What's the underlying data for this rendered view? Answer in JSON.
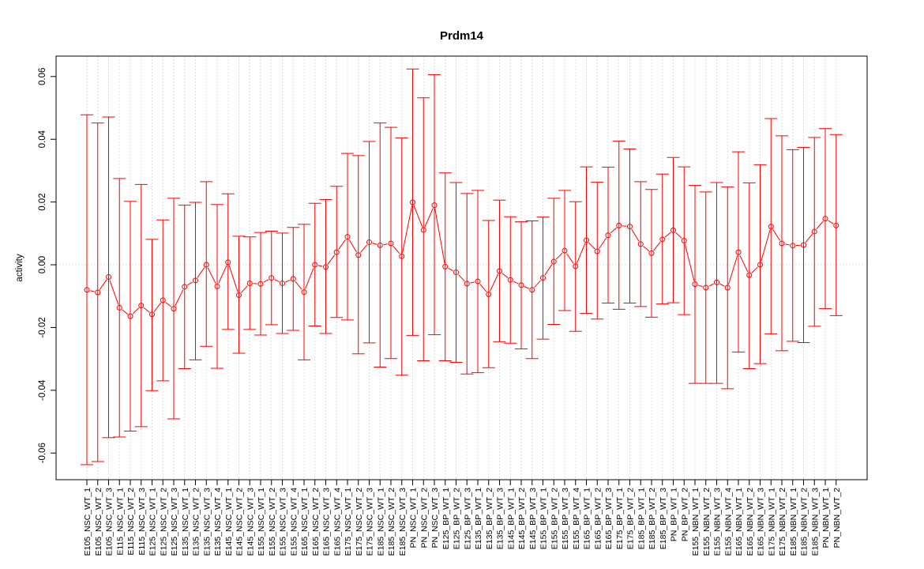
{
  "chart_data": {
    "type": "line",
    "title": "Prdm14",
    "xlabel": "",
    "ylabel": "activity",
    "ylim": [
      -0.0685,
      0.0665
    ],
    "yticks": [
      -0.06,
      -0.04,
      -0.02,
      0.0,
      0.02,
      0.04,
      0.06
    ],
    "ytick_labels": [
      "-0.06",
      "-0.04",
      "-0.02",
      "0.00",
      "0.02",
      "0.04",
      "0.06"
    ],
    "grid": true,
    "reference_line": 0,
    "colors": {
      "series": "#ff0000",
      "grid": "#cccccc",
      "axis": "#000000"
    },
    "categories": [
      "E105_NSC_WT_1",
      "E105_NSC_WT_2",
      "E105_NSC_WT_3",
      "E115_NSC_WT_1",
      "E115_NSC_WT_2",
      "E115_NSC_WT_3",
      "E125_NSC_WT_1",
      "E125_NSC_WT_2",
      "E125_NSC_WT_3",
      "E135_NSC_WT_1",
      "E135_NSC_WT_2",
      "E135_NSC_WT_3",
      "E135_NSC_WT_4",
      "E145_NSC_WT_1",
      "E145_NSC_WT_2",
      "E145_NSC_WT_3",
      "E155_NSC_WT_1",
      "E155_NSC_WT_2",
      "E155_NSC_WT_3",
      "E155_NSC_WT_4",
      "E165_NSC_WT_1",
      "E165_NSC_WT_2",
      "E165_NSC_WT_3",
      "E165_NSC_WT_4",
      "E175_NSC_WT_1",
      "E175_NSC_WT_2",
      "E175_NSC_WT_3",
      "E185_NSC_WT_1",
      "E185_NSC_WT_2",
      "E185_NSC_WT_3",
      "PN_NSC_WT_1",
      "PN_NSC_WT_2",
      "PN_NSC_WT_3",
      "E125_BP_WT_1",
      "E125_BP_WT_2",
      "E125_BP_WT_3",
      "E135_BP_WT_1",
      "E135_BP_WT_2",
      "E135_BP_WT_3",
      "E145_BP_WT_1",
      "E145_BP_WT_2",
      "E145_BP_WT_3",
      "E155_BP_WT_1",
      "E155_BP_WT_2",
      "E155_BP_WT_3",
      "E155_BP_WT_4",
      "E165_BP_WT_1",
      "E165_BP_WT_2",
      "E165_BP_WT_3",
      "E175_BP_WT_1",
      "E175_BP_WT_2",
      "E185_BP_WT_1",
      "E185_BP_WT_2",
      "E185_BP_WT_3",
      "PN_BP_WT_1",
      "PN_BP_WT_2",
      "E155_NBN_WT_1",
      "E155_NBN_WT_2",
      "E155_NBN_WT_3",
      "E155_NBN_WT_4",
      "E165_NBN_WT_1",
      "E165_NBN_WT_2",
      "E165_NBN_WT_3",
      "E175_NBN_WT_1",
      "E175_NBN_WT_2",
      "E185_NBN_WT_1",
      "E185_NBN_WT_2",
      "E185_NBN_WT_3",
      "PN_NBN_WT_1",
      "PN_NBN_WT_2"
    ],
    "series": [
      {
        "values": [
          -0.008,
          -0.0088,
          -0.0039,
          -0.0137,
          -0.0164,
          -0.013,
          -0.0158,
          -0.0113,
          -0.014,
          -0.007,
          -0.005,
          0.0,
          -0.0069,
          0.0008,
          -0.0097,
          -0.0059,
          -0.0061,
          -0.0042,
          -0.0059,
          -0.0045,
          -0.0087,
          0.0,
          -0.0007,
          0.004,
          0.0089,
          0.0031,
          0.0072,
          0.0062,
          0.0068,
          0.0027,
          0.0199,
          0.0111,
          0.019,
          -0.0006,
          -0.0024,
          -0.006,
          -0.0053,
          -0.0094,
          -0.002,
          -0.0048,
          -0.0065,
          -0.008,
          -0.0042,
          0.001,
          0.0045,
          -0.0005,
          0.0078,
          0.0043,
          0.0094,
          0.0125,
          0.0122,
          0.0066,
          0.0037,
          0.0081,
          0.011,
          0.0077,
          -0.0062,
          -0.0073,
          -0.0056,
          -0.0073,
          0.004,
          -0.0033,
          0.0,
          0.0122,
          0.0068,
          0.0061,
          0.0063,
          0.0106,
          0.0147,
          0.0125
        ],
        "upper": [
          0.0478,
          0.0452,
          0.0471,
          0.0275,
          0.0202,
          0.0256,
          0.0081,
          0.0143,
          0.0212,
          0.019,
          0.0199,
          0.0265,
          0.0192,
          0.0226,
          0.0091,
          0.0089,
          0.0103,
          0.0107,
          0.0101,
          0.0119,
          0.0129,
          0.0196,
          0.0208,
          0.025,
          0.0355,
          0.0348,
          0.0393,
          0.0452,
          0.0438,
          0.0404,
          0.0624,
          0.0532,
          0.0606,
          0.0293,
          0.0262,
          0.0227,
          0.0237,
          0.0141,
          0.0206,
          0.0153,
          0.0137,
          0.014,
          0.0152,
          0.0212,
          0.0237,
          0.0201,
          0.0312,
          0.0263,
          0.0311,
          0.0394,
          0.0369,
          0.0265,
          0.024,
          0.0289,
          0.0342,
          0.0312,
          0.0253,
          0.0232,
          0.0262,
          0.0248,
          0.036,
          0.0261,
          0.0319,
          0.0466,
          0.0411,
          0.0367,
          0.0374,
          0.0406,
          0.0434,
          0.0415
        ],
        "lower": [
          -0.0637,
          -0.0627,
          -0.0551,
          -0.0549,
          -0.053,
          -0.0516,
          -0.0401,
          -0.037,
          -0.0491,
          -0.0331,
          -0.0303,
          -0.026,
          -0.033,
          -0.0206,
          -0.0282,
          -0.0206,
          -0.0224,
          -0.0191,
          -0.0219,
          -0.0209,
          -0.0303,
          -0.0195,
          -0.0219,
          -0.0168,
          -0.0176,
          -0.0284,
          -0.0249,
          -0.0326,
          -0.0299,
          -0.0352,
          -0.0225,
          -0.0306,
          -0.0223,
          -0.0306,
          -0.0311,
          -0.0348,
          -0.0344,
          -0.0328,
          -0.0245,
          -0.025,
          -0.0268,
          -0.0299,
          -0.0237,
          -0.019,
          -0.0146,
          -0.0212,
          -0.0155,
          -0.0173,
          -0.0122,
          -0.0142,
          -0.0122,
          -0.0133,
          -0.0167,
          -0.0125,
          -0.0121,
          -0.0159,
          -0.0378,
          -0.0378,
          -0.0378,
          -0.0395,
          -0.0278,
          -0.0331,
          -0.0315,
          -0.022,
          -0.0274,
          -0.0244,
          -0.0248,
          -0.0196,
          -0.014,
          -0.0162
        ]
      }
    ]
  }
}
